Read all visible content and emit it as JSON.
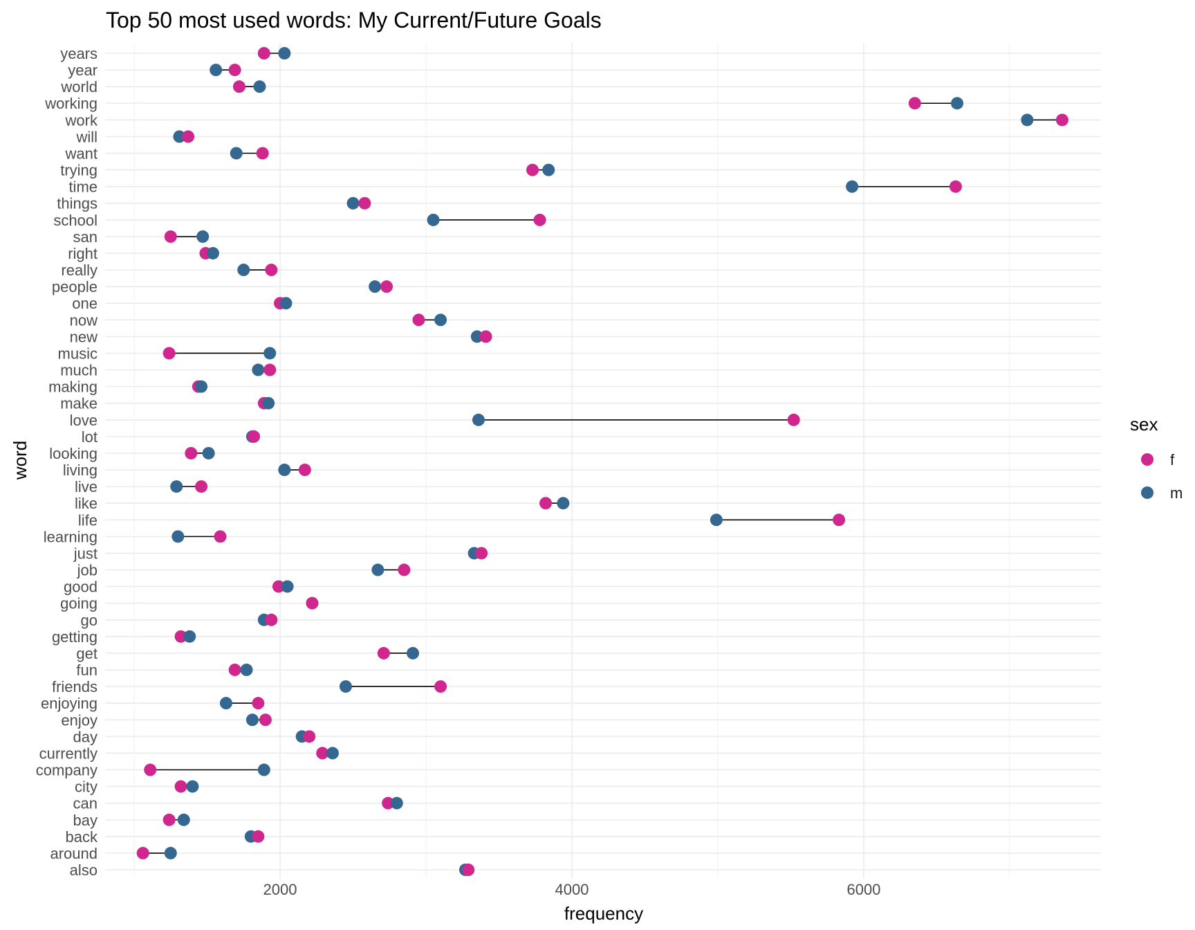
{
  "chart_data": {
    "type": "scatter",
    "subtype": "dumbbell",
    "title": "Top 50 most used words: My Current/Future Goals",
    "xlabel": "frequency",
    "ylabel": "word",
    "xlim": [
      900,
      7600
    ],
    "x_ticks": [
      2000,
      4000,
      6000
    ],
    "grid": true,
    "legend": {
      "title": "sex",
      "position": "right"
    },
    "series": [
      {
        "name": "f",
        "color": "#D0278F"
      },
      {
        "name": "m",
        "color": "#356891"
      }
    ],
    "categories": [
      "years",
      "year",
      "world",
      "working",
      "work",
      "will",
      "want",
      "trying",
      "time",
      "things",
      "school",
      "san",
      "right",
      "really",
      "people",
      "one",
      "now",
      "new",
      "music",
      "much",
      "making",
      "make",
      "love",
      "lot",
      "looking",
      "living",
      "live",
      "like",
      "life",
      "learning",
      "just",
      "job",
      "good",
      "going",
      "go",
      "getting",
      "get",
      "fun",
      "friends",
      "enjoying",
      "enjoy",
      "day",
      "currently",
      "company",
      "city",
      "can",
      "bay",
      "back",
      "around",
      "also"
    ],
    "points": [
      {
        "word": "years",
        "f": 1890,
        "m": 2030
      },
      {
        "word": "year",
        "f": 1690,
        "m": 1560
      },
      {
        "word": "world",
        "f": 1720,
        "m": 1860
      },
      {
        "word": "working",
        "f": 6350,
        "m": 6640
      },
      {
        "word": "work",
        "f": 7360,
        "m": 7120
      },
      {
        "word": "will",
        "f": 1370,
        "m": 1310
      },
      {
        "word": "want",
        "f": 1880,
        "m": 1700
      },
      {
        "word": "trying",
        "f": 3730,
        "m": 3840
      },
      {
        "word": "time",
        "f": 6630,
        "m": 5920
      },
      {
        "word": "things",
        "f": 2580,
        "m": 2500
      },
      {
        "word": "school",
        "f": 3780,
        "m": 3050
      },
      {
        "word": "san",
        "f": 1250,
        "m": 1470
      },
      {
        "word": "right",
        "f": 1490,
        "m": 1540
      },
      {
        "word": "really",
        "f": 1940,
        "m": 1750
      },
      {
        "word": "people",
        "f": 2730,
        "m": 2650
      },
      {
        "word": "one",
        "f": 2000,
        "m": 2040
      },
      {
        "word": "now",
        "f": 2950,
        "m": 3100
      },
      {
        "word": "new",
        "f": 3410,
        "m": 3350
      },
      {
        "word": "music",
        "f": 1240,
        "m": 1930
      },
      {
        "word": "much",
        "f": 1930,
        "m": 1850
      },
      {
        "word": "making",
        "f": 1440,
        "m": 1460
      },
      {
        "word": "make",
        "f": 1890,
        "m": 1920
      },
      {
        "word": "love",
        "f": 5520,
        "m": 3360
      },
      {
        "word": "lot",
        "f": 1820,
        "m": 1810
      },
      {
        "word": "looking",
        "f": 1390,
        "m": 1510
      },
      {
        "word": "living",
        "f": 2170,
        "m": 2030
      },
      {
        "word": "live",
        "f": 1460,
        "m": 1290
      },
      {
        "word": "like",
        "f": 3820,
        "m": 3940
      },
      {
        "word": "life",
        "f": 5830,
        "m": 4990
      },
      {
        "word": "learning",
        "f": 1590,
        "m": 1300
      },
      {
        "word": "just",
        "f": 3380,
        "m": 3330
      },
      {
        "word": "job",
        "f": 2850,
        "m": 2670
      },
      {
        "word": "good",
        "f": 1990,
        "m": 2050
      },
      {
        "word": "going",
        "f": 2220,
        "m": 2220
      },
      {
        "word": "go",
        "f": 1940,
        "m": 1890
      },
      {
        "word": "getting",
        "f": 1320,
        "m": 1380
      },
      {
        "word": "get",
        "f": 2710,
        "m": 2910
      },
      {
        "word": "fun",
        "f": 1690,
        "m": 1770
      },
      {
        "word": "friends",
        "f": 3100,
        "m": 2450
      },
      {
        "word": "enjoying",
        "f": 1850,
        "m": 1630
      },
      {
        "word": "enjoy",
        "f": 1900,
        "m": 1810
      },
      {
        "word": "day",
        "f": 2200,
        "m": 2150
      },
      {
        "word": "currently",
        "f": 2290,
        "m": 2360
      },
      {
        "word": "company",
        "f": 1110,
        "m": 1890
      },
      {
        "word": "city",
        "f": 1320,
        "m": 1400
      },
      {
        "word": "can",
        "f": 2740,
        "m": 2800
      },
      {
        "word": "bay",
        "f": 1240,
        "m": 1340
      },
      {
        "word": "back",
        "f": 1850,
        "m": 1800
      },
      {
        "word": "around",
        "f": 1060,
        "m": 1250
      },
      {
        "word": "also",
        "f": 3290,
        "m": 3270
      }
    ]
  }
}
